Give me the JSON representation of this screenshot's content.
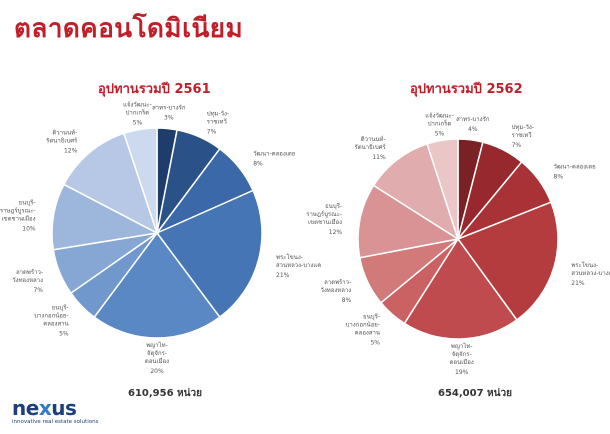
{
  "page_title": "ตลาดคอนโดมิเนียม",
  "logo": {
    "word_a": "ne",
    "word_x": "x",
    "word_b": "us",
    "tagline": "innovative real estate solutions"
  },
  "chart_data": [
    {
      "type": "pie",
      "title": "อุปทานรวมปี 2561",
      "total": "610,956 หน่วย",
      "slices": [
        {
          "label": "สาทร-บางรัก",
          "pct": "3%",
          "value": 3,
          "color": "#1f3d6b"
        },
        {
          "label": "ปทุม-วัง-ราชเทวี",
          "pct": "7%",
          "value": 7,
          "color": "#2a5288"
        },
        {
          "label": "วัฒนา-คลองเตย",
          "pct": "8%",
          "value": 8,
          "color": "#3a68a8"
        },
        {
          "label": "พระโขนง-สวนหลวง-บางแค",
          "pct": "21%",
          "value": 21,
          "color": "#4575b4"
        },
        {
          "label": "พญาไท-จัตุจักร-ดอนเมือง",
          "pct": "20%",
          "value": 20,
          "color": "#5a88c4"
        },
        {
          "label": "ธนบุรี-บางกอกน้อย-คลองสาน",
          "pct": "5%",
          "value": 5,
          "color": "#7098cc"
        },
        {
          "label": "ลาดพร้าว-วังทองหลาง",
          "pct": "7%",
          "value": 7,
          "color": "#86a7d4"
        },
        {
          "label": "ธนบุรี-ราษฎร์บูรณะ-เขตชานเมือง",
          "pct": "10%",
          "value": 10,
          "color": "#9cb6dc"
        },
        {
          "label": "ดิวานนท์-รัตนาธิเบศร์",
          "pct": "12%",
          "value": 12,
          "color": "#b6c8e6"
        },
        {
          "label": "แจ้งวัฒนะ-ปากเกร็ด",
          "pct": "5%",
          "value": 5,
          "color": "#cdd9ee"
        }
      ]
    },
    {
      "type": "pie",
      "title": "อุปทานรวมปี 2562",
      "total": "654,007 หน่วย",
      "slices": [
        {
          "label": "สาทร-บางรัก",
          "pct": "4%",
          "value": 4,
          "color": "#7a2126"
        },
        {
          "label": "ปทุม-วัง-ราชเทวี",
          "pct": "7%",
          "value": 7,
          "color": "#97282d"
        },
        {
          "label": "วัฒนา-คลองเตย",
          "pct": "8%",
          "value": 8,
          "color": "#a93236"
        },
        {
          "label": "พระโขนง-สวนหลวง-บางแค",
          "pct": "21%",
          "value": 21,
          "color": "#b43c3f"
        },
        {
          "label": "พญาไท-จัตุจักร-ดอนเมือง",
          "pct": "19%",
          "value": 19,
          "color": "#c04b4e"
        },
        {
          "label": "ธนบุรี-บางกอกน้อย-คลองสาน",
          "pct": "5%",
          "value": 5,
          "color": "#ca6163"
        },
        {
          "label": "ลาดพร้าว-วังทองหลาง",
          "pct": "8%",
          "value": 8,
          "color": "#d2797a"
        },
        {
          "label": "ธนบุรี-ราษฎร์บูรณะ-เขตชานเมือง",
          "pct": "12%",
          "value": 12,
          "color": "#d99394"
        },
        {
          "label": "ดิวานนท์-รัตนาธิเบศร์",
          "pct": "11%",
          "value": 11,
          "color": "#e1acad"
        },
        {
          "label": "แจ้งวัฒนะ-ปากเกร็ด",
          "pct": "5%",
          "value": 5,
          "color": "#eac6c6"
        }
      ]
    }
  ]
}
